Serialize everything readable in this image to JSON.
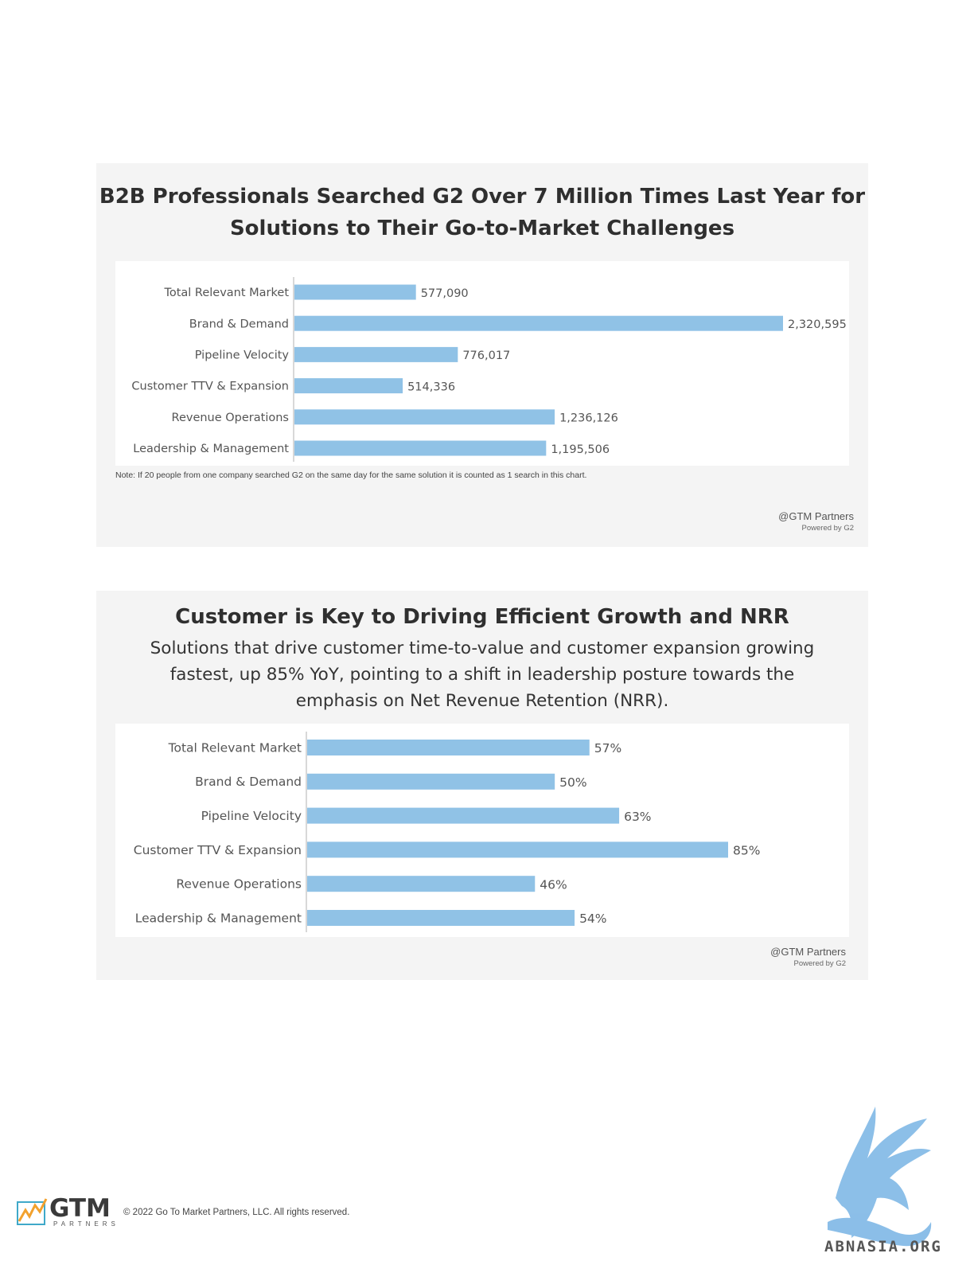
{
  "panel1": {
    "title_line1": "B2B Professionals Searched G2 Over 7 Million Times Last Year for",
    "title_line2": "Solutions to Their Go-to-Market Challenges",
    "note": "Note: If 20 people from one company searched G2 on the same day for the same solution it is counted as 1 search in this chart.",
    "credit": "@GTM Partners",
    "powered": "Powered by G2"
  },
  "panel2": {
    "title": "Customer is Key to Driving Efficient Growth and NRR",
    "subtitle": "Solutions that drive customer time-to-value and customer expansion growing fastest, up 85% YoY, pointing to a shift in leadership posture towards the emphasis on Net Revenue Retention (NRR).",
    "credit": "@GTM Partners",
    "powered": "Powered by G2"
  },
  "chart_data": [
    {
      "type": "bar",
      "orientation": "horizontal",
      "categories": [
        "Total Relevant Market",
        "Brand & Demand",
        "Pipeline Velocity",
        "Customer TTV & Expansion",
        "Revenue Operations",
        "Leadership & Management"
      ],
      "values": [
        577090,
        2320595,
        776017,
        514336,
        1236126,
        1195506
      ],
      "data_labels": [
        "577,090",
        "2,320,595",
        "776,017",
        "514,336",
        "1,236,126",
        "1,195,506"
      ],
      "xlim": [
        0,
        2320595
      ],
      "bar_color": "#90c2e6",
      "grid": false
    },
    {
      "type": "bar",
      "orientation": "horizontal",
      "categories": [
        "Total Relevant Market",
        "Brand & Demand",
        "Pipeline Velocity",
        "Customer TTV & Expansion",
        "Revenue Operations",
        "Leadership & Management"
      ],
      "values": [
        57,
        50,
        63,
        85,
        46,
        54
      ],
      "data_labels": [
        "57%",
        "50%",
        "63%",
        "85%",
        "46%",
        "54%"
      ],
      "xlim": [
        0,
        85
      ],
      "bar_color": "#90c2e6",
      "grid": false
    }
  ],
  "footer": {
    "logo": "GTM",
    "logo_sub": "PARTNERS",
    "copyright": "© 2022 Go To Market Partners, LLC. All rights reserved.",
    "watermark": "ABNASIA.ORG"
  }
}
